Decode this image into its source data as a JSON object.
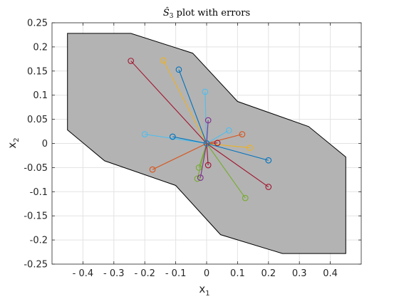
{
  "chart_data": {
    "type": "scatter",
    "title": {
      "hat": "Ŝ",
      "sub": "3",
      "rest": " plot with errors"
    },
    "xlabel": {
      "main": "x",
      "sub": "1"
    },
    "ylabel": {
      "main": "x",
      "sub": "2"
    },
    "xlim": [
      -0.5,
      0.5
    ],
    "ylim": [
      -0.25,
      0.25
    ],
    "xticks": [
      -0.4,
      -0.3,
      -0.2,
      -0.1,
      0,
      0.1,
      0.2,
      0.3,
      0.4
    ],
    "xtick_labels": [
      "- 0.4",
      "- 0.3",
      "- 0.2",
      "- 0.1",
      "0",
      "0.1",
      "0.2",
      "0.3",
      "0.4"
    ],
    "yticks": [
      0.25,
      0.2,
      0.15,
      0.1,
      0.05,
      0,
      -0.05,
      -0.1,
      -0.15,
      -0.2,
      -0.25
    ],
    "ytick_labels": [
      "0.25",
      "0.2",
      "0.15",
      "0.1",
      "0.05",
      "0",
      "-0.05",
      "-0.1",
      "-0.15",
      "-0.2",
      "-0.25"
    ],
    "grid": true,
    "polygon": {
      "fill": "#b3b3b3",
      "stroke": "#000000",
      "points": [
        [
          -0.45,
          0.228
        ],
        [
          -0.245,
          0.228
        ],
        [
          -0.045,
          0.187
        ],
        [
          0.1,
          0.087
        ],
        [
          0.33,
          0.035
        ],
        [
          0.45,
          -0.028
        ],
        [
          0.45,
          -0.228
        ],
        [
          0.245,
          -0.228
        ],
        [
          0.045,
          -0.189
        ],
        [
          -0.1,
          -0.087
        ],
        [
          -0.33,
          -0.036
        ],
        [
          -0.45,
          0.028
        ]
      ]
    },
    "center": [
      0,
      0
    ],
    "error_points": [
      {
        "x": -0.245,
        "y": 0.171,
        "color": "#a2142f"
      },
      {
        "x": -0.14,
        "y": 0.172,
        "color": "#edb120"
      },
      {
        "x": -0.09,
        "y": 0.153,
        "color": "#0072bd"
      },
      {
        "x": -0.005,
        "y": 0.107,
        "color": "#4dbeee"
      },
      {
        "x": 0.005,
        "y": 0.048,
        "color": "#7e2f8e"
      },
      {
        "x": 0.072,
        "y": 0.027,
        "color": "#4dbeee"
      },
      {
        "x": 0.115,
        "y": 0.019,
        "color": "#d95319"
      },
      {
        "x": 0.035,
        "y": 0.001,
        "color": "#a2142f"
      },
      {
        "x": 0.14,
        "y": -0.009,
        "color": "#edb120"
      },
      {
        "x": 0.2,
        "y": -0.035,
        "color": "#0072bd"
      },
      {
        "x": 0.2,
        "y": -0.09,
        "color": "#a2142f"
      },
      {
        "x": 0.125,
        "y": -0.113,
        "color": "#77ac30"
      },
      {
        "x": 0.005,
        "y": -0.045,
        "color": "#a2142f"
      },
      {
        "x": -0.025,
        "y": -0.05,
        "color": "#77ac30"
      },
      {
        "x": -0.03,
        "y": -0.073,
        "color": "#77ac30"
      },
      {
        "x": -0.02,
        "y": -0.071,
        "color": "#7e2f8e"
      },
      {
        "x": -0.175,
        "y": -0.054,
        "color": "#d95319"
      },
      {
        "x": -0.2,
        "y": 0.019,
        "color": "#4dbeee"
      },
      {
        "x": -0.11,
        "y": 0.014,
        "color": "#0072bd"
      }
    ]
  }
}
